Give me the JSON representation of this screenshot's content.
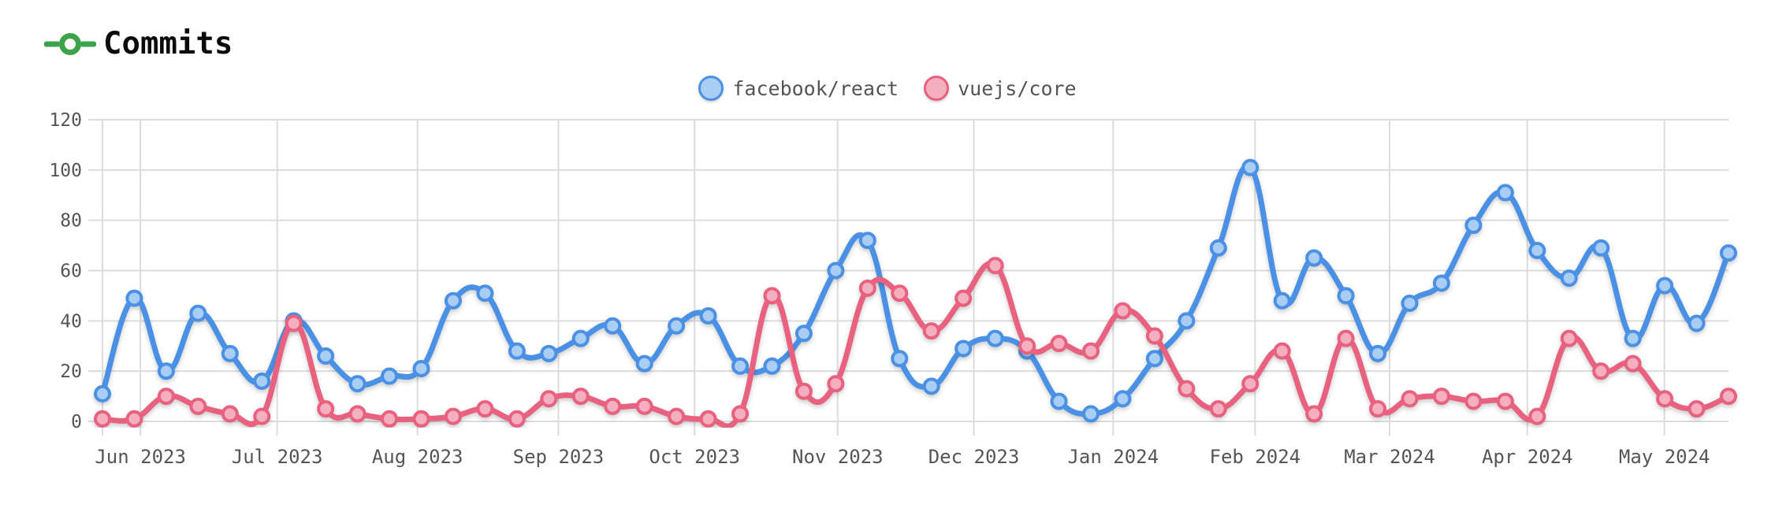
{
  "header": {
    "title": "Commits",
    "icon": "git-commit-icon",
    "icon_color": "#3da24c",
    "title_color": "#0b0b0b"
  },
  "legend": [
    {
      "label": "facebook/react",
      "color": "#4a91e5",
      "fill": "#a9cdf3"
    },
    {
      "label": "vuejs/core",
      "color": "#e8617f",
      "fill": "#f4afc0"
    }
  ],
  "style": {
    "grid_color": "#dcdcdc",
    "axis_label_color": "#555555",
    "background": "#ffffff"
  },
  "chart_data": {
    "type": "line",
    "title": "Commits",
    "x_unit": "week",
    "ylim": [
      0,
      120
    ],
    "grid": true,
    "legend_position": "top-center",
    "y_ticks": [
      0,
      20,
      40,
      60,
      80,
      100,
      120
    ],
    "x_ticks": [
      {
        "label": "Jun 2023",
        "pos": 1.19
      },
      {
        "label": "Jul 2023",
        "pos": 5.48
      },
      {
        "label": "Aug 2023",
        "pos": 9.88
      },
      {
        "label": "Sep 2023",
        "pos": 14.3
      },
      {
        "label": "Oct 2023",
        "pos": 18.57
      },
      {
        "label": "Nov 2023",
        "pos": 23.06
      },
      {
        "label": "Dec 2023",
        "pos": 27.33
      },
      {
        "label": "Jan 2024",
        "pos": 31.7
      },
      {
        "label": "Feb 2024",
        "pos": 36.15
      },
      {
        "label": "Mar 2024",
        "pos": 40.37
      },
      {
        "label": "Apr 2024",
        "pos": 44.69
      },
      {
        "label": "May 2024",
        "pos": 48.99
      }
    ],
    "series": [
      {
        "name": "facebook/react",
        "color": "#4a91e5",
        "marker_fill": "#a9cdf3",
        "values": [
          11,
          49,
          20,
          43,
          27,
          16,
          40,
          26,
          15,
          18,
          21,
          48,
          51,
          28,
          27,
          33,
          38,
          23,
          38,
          42,
          22,
          22,
          35,
          60,
          72,
          25,
          14,
          29,
          33,
          28,
          8,
          3,
          9,
          25,
          40,
          69,
          101,
          48,
          65,
          50,
          27,
          47,
          55,
          78,
          91,
          68,
          57,
          69,
          33,
          54,
          39,
          67
        ]
      },
      {
        "name": "vuejs/core",
        "color": "#e8617f",
        "marker_fill": "#f4afc0",
        "values": [
          1,
          1,
          10,
          6,
          3,
          2,
          39,
          5,
          3,
          1,
          1,
          2,
          5,
          1,
          9,
          10,
          6,
          6,
          2,
          1,
          3,
          50,
          12,
          15,
          53,
          51,
          36,
          49,
          62,
          30,
          31,
          28,
          44,
          34,
          13,
          5,
          15,
          28,
          3,
          33,
          5,
          9,
          10,
          8,
          8,
          2,
          33,
          20,
          23,
          9,
          5,
          10
        ]
      }
    ]
  }
}
